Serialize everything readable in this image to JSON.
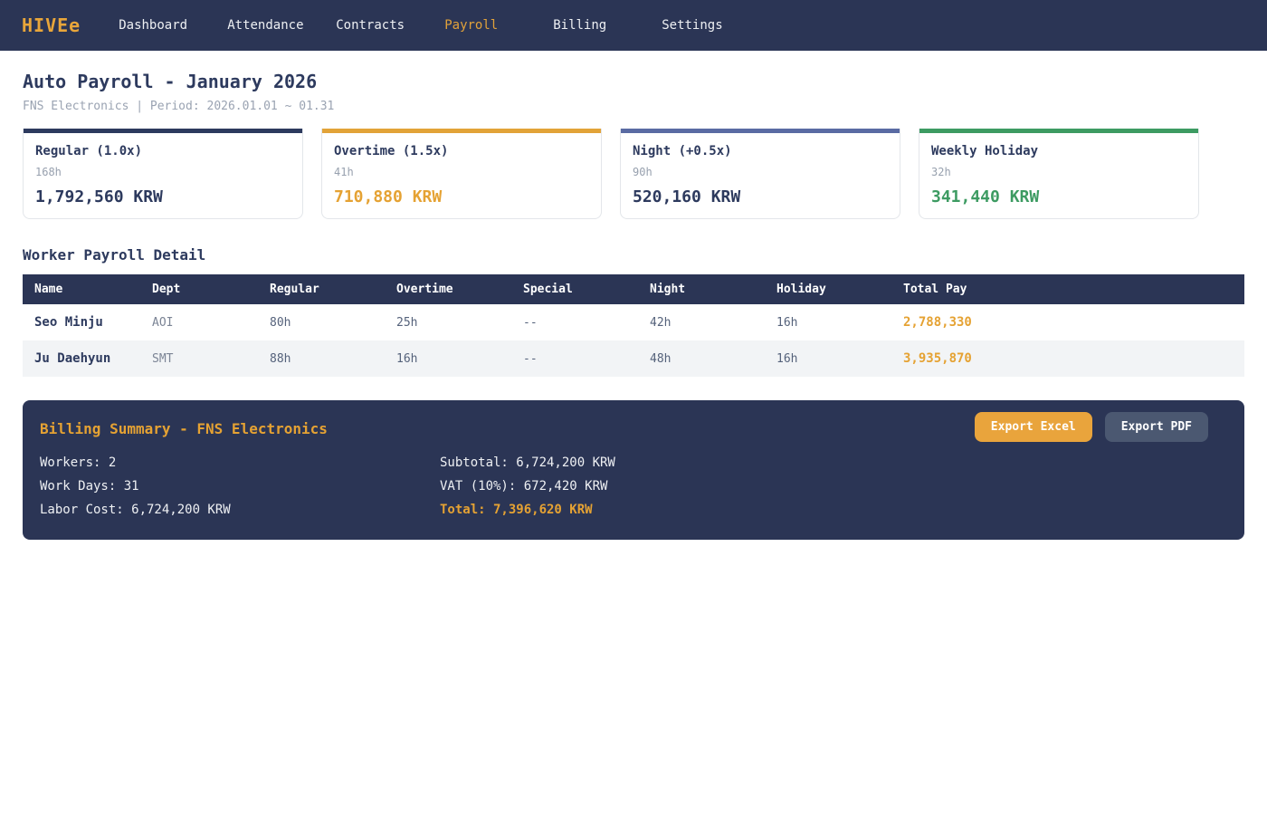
{
  "colors": {
    "navy": "#2b3555",
    "dark_text": "#2d3a5e",
    "orange": "#e5a233",
    "orange_button": "#e9a43c",
    "pdf_button": "#4b5871",
    "green": "#3d9b62",
    "slate_blue": "#5a6ba3"
  },
  "navbar": {
    "logo": "HIVEe",
    "items": [
      {
        "label": "Dashboard",
        "active": false
      },
      {
        "label": "Attendance",
        "active": false
      },
      {
        "label": "Contracts",
        "active": false
      },
      {
        "label": "Payroll",
        "active": true
      },
      {
        "label": "Billing",
        "active": false
      },
      {
        "label": "Settings",
        "active": false
      }
    ]
  },
  "header": {
    "title": "Auto Payroll - January 2026",
    "subtitle": "FNS Electronics | Period: 2026.01.01 ~ 01.31"
  },
  "cards": [
    {
      "label": "Regular (1.0x)",
      "hours": "168h",
      "value": "1,792,560 KRW",
      "bar_color": "#2d3a5e",
      "value_color": "#2d3a5e"
    },
    {
      "label": "Overtime (1.5x)",
      "hours": "41h",
      "value": "710,880 KRW",
      "bar_color": "#e2a338",
      "value_color": "#e5a233"
    },
    {
      "label": "Night (+0.5x)",
      "hours": "90h",
      "value": "520,160 KRW",
      "bar_color": "#5a6ba3",
      "value_color": "#2d3a5e"
    },
    {
      "label": "Weekly Holiday",
      "hours": "32h",
      "value": "341,440 KRW",
      "bar_color": "#3d9b62",
      "value_color": "#3d9b62"
    }
  ],
  "table": {
    "section_title": "Worker Payroll Detail",
    "headers": [
      "Name",
      "Dept",
      "Regular",
      "Overtime",
      "Special",
      "Night",
      "Holiday",
      "Total Pay"
    ],
    "rows": [
      {
        "cells": [
          "Seo Minju",
          "AOI",
          "80h",
          "25h",
          "--",
          "42h",
          "16h",
          "2,788,330"
        ]
      },
      {
        "cells": [
          "Ju Daehyun",
          "SMT",
          "88h",
          "16h",
          "--",
          "48h",
          "16h",
          "3,935,870"
        ]
      }
    ],
    "total_color": "#e5a233"
  },
  "billing": {
    "title": "Billing Summary - FNS Electronics",
    "title_color": "#e5a233",
    "export_excel_label": "Export Excel",
    "export_pdf_label": "Export PDF",
    "left": [
      "Workers: 2",
      "Work Days: 31",
      "Labor Cost: 6,724,200 KRW"
    ],
    "right": [
      "Subtotal: 6,724,200 KRW",
      "VAT (10%): 672,420 KRW",
      "Total: 7,396,620 KRW"
    ],
    "total_color": "#e5a233"
  }
}
